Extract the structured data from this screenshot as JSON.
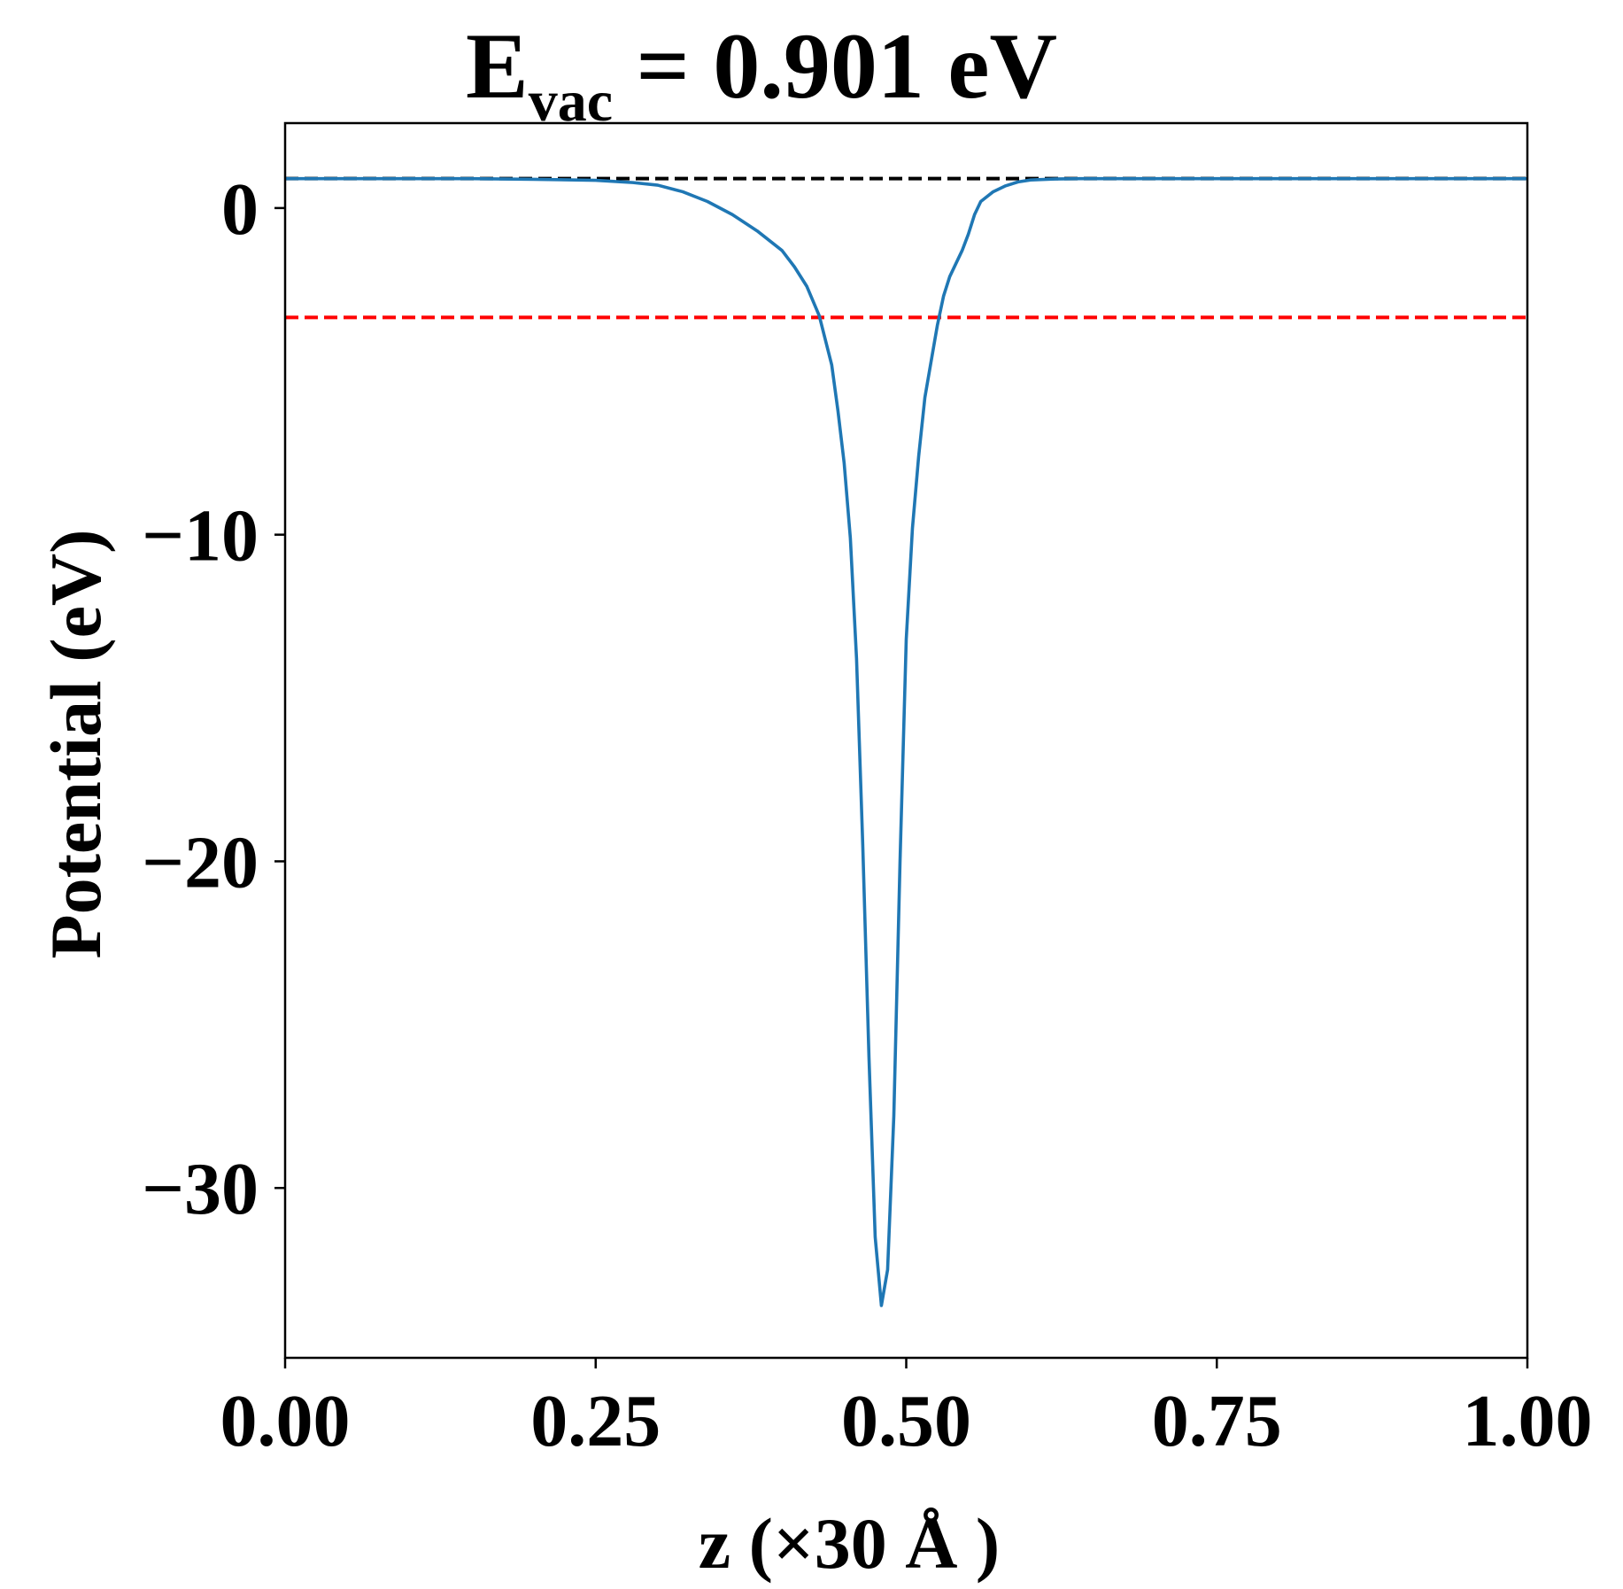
{
  "chart_data": {
    "type": "line",
    "title": {
      "main": "E",
      "subscript": "vac",
      "rest": " = 0.901 eV"
    },
    "xlabel": "z (×30 Å )",
    "ylabel": "Potential (eV)",
    "xlim": [
      0.0,
      1.0
    ],
    "ylim": [
      -35.2,
      2.6
    ],
    "xticks": [
      0.0,
      0.25,
      0.5,
      0.75,
      1.0
    ],
    "xtick_labels": [
      "0.00",
      "0.25",
      "0.50",
      "0.75",
      "1.00"
    ],
    "yticks": [
      0,
      -10,
      -20,
      -30
    ],
    "ytick_labels": [
      "0",
      "−10",
      "−20",
      "−30"
    ],
    "grid": false,
    "reference_lines": [
      {
        "value": 0.901,
        "color": "#000000",
        "style": "dashed"
      },
      {
        "value": -3.35,
        "color": "#ff0000",
        "style": "dashed"
      }
    ],
    "series": [
      {
        "color": "#1f77b4",
        "x": [
          0.0,
          0.05,
          0.1,
          0.15,
          0.2,
          0.25,
          0.28,
          0.3,
          0.32,
          0.34,
          0.36,
          0.38,
          0.4,
          0.41,
          0.42,
          0.43,
          0.44,
          0.445,
          0.45,
          0.455,
          0.46,
          0.465,
          0.47,
          0.475,
          0.48,
          0.485,
          0.49,
          0.495,
          0.5,
          0.505,
          0.51,
          0.515,
          0.52,
          0.525,
          0.53,
          0.535,
          0.54,
          0.545,
          0.55,
          0.555,
          0.56,
          0.57,
          0.58,
          0.59,
          0.6,
          0.62,
          0.64,
          0.66,
          0.68,
          0.7,
          0.72,
          0.75,
          0.8,
          0.85,
          0.9,
          0.95,
          1.0
        ],
        "y": [
          0.9,
          0.9,
          0.9,
          0.9,
          0.88,
          0.85,
          0.78,
          0.7,
          0.5,
          0.2,
          -0.2,
          -0.7,
          -1.3,
          -1.8,
          -2.4,
          -3.3,
          -4.8,
          -6.2,
          -7.8,
          -10.1,
          -13.8,
          -19.5,
          -26.0,
          -31.5,
          -33.6,
          -32.5,
          -27.8,
          -20.0,
          -13.2,
          -9.8,
          -7.6,
          -5.8,
          -4.7,
          -3.6,
          -2.7,
          -2.1,
          -1.7,
          -1.3,
          -0.8,
          -0.2,
          0.2,
          0.5,
          0.68,
          0.8,
          0.86,
          0.89,
          0.9,
          0.9,
          0.9,
          0.9,
          0.9,
          0.9,
          0.9,
          0.9,
          0.9,
          0.9,
          0.9
        ]
      }
    ]
  }
}
